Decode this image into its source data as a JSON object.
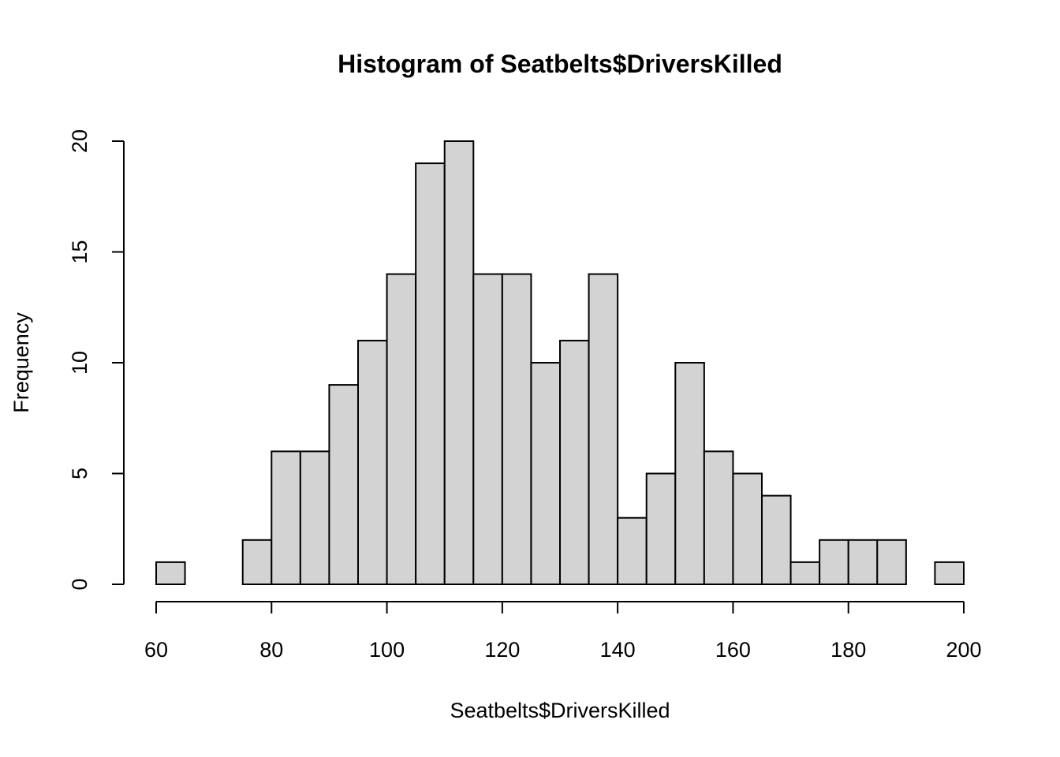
{
  "chart_data": {
    "type": "bar",
    "title": "Histogram of Seatbelts$DriversKilled",
    "xlabel": "Seatbelts$DriversKilled",
    "ylabel": "Frequency",
    "bin_width": 5,
    "bins": [
      {
        "start": 60,
        "end": 65,
        "count": 1
      },
      {
        "start": 65,
        "end": 70,
        "count": 0
      },
      {
        "start": 70,
        "end": 75,
        "count": 0
      },
      {
        "start": 75,
        "end": 80,
        "count": 2
      },
      {
        "start": 80,
        "end": 85,
        "count": 6
      },
      {
        "start": 85,
        "end": 90,
        "count": 6
      },
      {
        "start": 90,
        "end": 95,
        "count": 9
      },
      {
        "start": 95,
        "end": 100,
        "count": 11
      },
      {
        "start": 100,
        "end": 105,
        "count": 14
      },
      {
        "start": 105,
        "end": 110,
        "count": 19
      },
      {
        "start": 110,
        "end": 115,
        "count": 20
      },
      {
        "start": 115,
        "end": 120,
        "count": 14
      },
      {
        "start": 120,
        "end": 125,
        "count": 14
      },
      {
        "start": 125,
        "end": 130,
        "count": 10
      },
      {
        "start": 130,
        "end": 135,
        "count": 11
      },
      {
        "start": 135,
        "end": 140,
        "count": 14
      },
      {
        "start": 140,
        "end": 145,
        "count": 3
      },
      {
        "start": 145,
        "end": 150,
        "count": 5
      },
      {
        "start": 150,
        "end": 155,
        "count": 10
      },
      {
        "start": 155,
        "end": 160,
        "count": 6
      },
      {
        "start": 160,
        "end": 165,
        "count": 5
      },
      {
        "start": 165,
        "end": 170,
        "count": 4
      },
      {
        "start": 170,
        "end": 175,
        "count": 1
      },
      {
        "start": 175,
        "end": 180,
        "count": 2
      },
      {
        "start": 180,
        "end": 185,
        "count": 2
      },
      {
        "start": 185,
        "end": 190,
        "count": 2
      },
      {
        "start": 190,
        "end": 195,
        "count": 0
      },
      {
        "start": 195,
        "end": 200,
        "count": 1
      }
    ],
    "xlim": [
      60,
      200
    ],
    "ylim": [
      0,
      20
    ],
    "x_ticks": [
      60,
      80,
      100,
      120,
      140,
      160,
      180,
      200
    ],
    "y_ticks": [
      0,
      5,
      10,
      15,
      20
    ],
    "x_tick_labels": [
      "60",
      "80",
      "100",
      "120",
      "140",
      "160",
      "180",
      "200"
    ],
    "y_tick_labels": [
      "0",
      "5",
      "10",
      "15",
      "20"
    ],
    "grid": false,
    "bar_color": "#d3d3d3"
  }
}
